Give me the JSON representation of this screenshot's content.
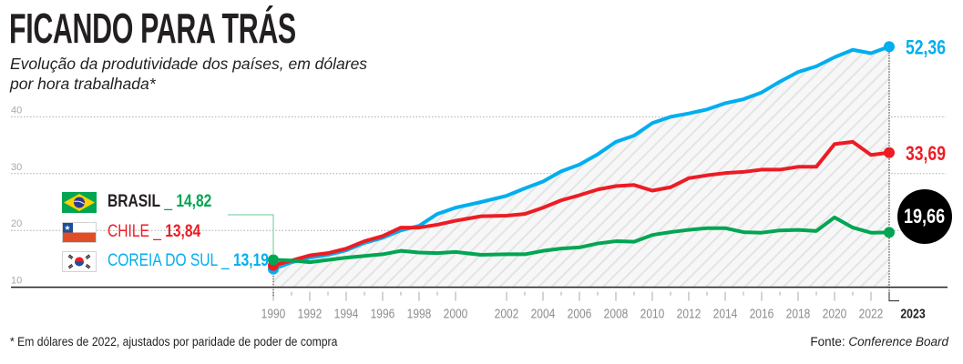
{
  "header": {
    "title": "FICANDO PARA TRÁS",
    "subtitle_line1": "Evolução da produtividade dos países, em dólares",
    "subtitle_line2": "por hora trabalhada*"
  },
  "legend": {
    "brasil": {
      "name": "BRASIL",
      "sep": "_",
      "value": "14,82",
      "flag": "brazil-flag-icon"
    },
    "chile": {
      "name": "CHILE",
      "sep": "_",
      "value": "13,84",
      "flag": "chile-flag-icon"
    },
    "coreia": {
      "name": "COREIA DO SUL",
      "sep": "_",
      "value": "13,19",
      "flag": "south-korea-flag-icon"
    }
  },
  "end_labels": {
    "coreia": "52,36",
    "chile": "33,69",
    "brasil": "19,66"
  },
  "footer": {
    "footnote": "* Em dólares de 2022, ajustados por paridade de poder de compra",
    "source_prefix": "Fonte: ",
    "source_name": "Conference Board"
  },
  "colors": {
    "brasil": "#00a651",
    "chile": "#ed1c24",
    "coreia": "#00aeef",
    "text": "#231f20",
    "grid": "#a7a9ac",
    "hatch": "#e6e7e8"
  },
  "chart_data": {
    "type": "line",
    "title": "FICANDO PARA TRÁS",
    "subtitle": "Evolução da produtividade dos países, em dólares por hora trabalhada*",
    "xlabel": "",
    "ylabel": "",
    "ylim": [
      10,
      55
    ],
    "yticks": [
      10,
      20,
      30,
      40
    ],
    "ytick_labels": [
      "10",
      "20",
      "30",
      "40"
    ],
    "grid": "horizontal dotted",
    "legend_position": "left",
    "x": [
      1990,
      1991,
      1992,
      1993,
      1994,
      1995,
      1996,
      1997,
      1998,
      1999,
      2000,
      2001,
      2002,
      2003,
      2004,
      2005,
      2006,
      2007,
      2008,
      2009,
      2010,
      2011,
      2012,
      2013,
      2014,
      2015,
      2016,
      2017,
      2018,
      2019,
      2020,
      2021,
      2022,
      2023
    ],
    "xtick_labels": [
      "1990",
      "1992",
      "1994",
      "1996",
      "1998",
      "2000",
      "2002",
      "2004",
      "2006",
      "2008",
      "2010",
      "2012",
      "2014",
      "2016",
      "2018",
      "2020",
      "2022",
      "2023"
    ],
    "series": [
      {
        "name": "Coreia do Sul",
        "key": "coreia",
        "values": [
          13.19,
          14.4,
          15.2,
          15.7,
          16.5,
          17.8,
          18.7,
          20.0,
          20.8,
          22.9,
          24.0,
          25.0,
          26.1,
          27.4,
          28.6,
          30.4,
          31.6,
          33.4,
          35.6,
          36.7,
          38.9,
          40.0,
          40.6,
          41.3,
          42.4,
          43.1,
          44.3,
          46.2,
          47.9,
          48.9,
          50.5,
          51.8,
          51.2,
          52.36
        ]
      },
      {
        "name": "Chile",
        "key": "chile",
        "values": [
          13.84,
          14.7,
          15.6,
          16.0,
          16.8,
          18.1,
          19.0,
          20.5,
          20.5,
          21.0,
          21.7,
          22.5,
          22.6,
          22.9,
          24.0,
          25.3,
          26.2,
          27.2,
          27.8,
          28.0,
          27.0,
          27.6,
          29.2,
          29.7,
          30.1,
          30.3,
          30.7,
          30.7,
          31.2,
          31.2,
          35.2,
          35.6,
          33.3,
          33.69
        ]
      },
      {
        "name": "Brasil",
        "key": "brasil",
        "values": [
          14.82,
          14.7,
          14.4,
          14.8,
          15.2,
          15.5,
          15.8,
          16.4,
          16.1,
          16.0,
          16.2,
          15.7,
          15.8,
          15.8,
          16.4,
          16.8,
          17.0,
          17.7,
          18.1,
          18.0,
          19.2,
          19.7,
          20.1,
          20.4,
          20.4,
          19.7,
          19.6,
          20.0,
          20.1,
          19.9,
          22.3,
          20.5,
          19.6,
          19.66
        ]
      }
    ],
    "start_values": {
      "Brasil": 14.82,
      "Chile": 13.84,
      "Coreia do Sul": 13.19
    },
    "end_values": {
      "Brasil": 19.66,
      "Chile": 33.69,
      "Coreia do Sul": 52.36
    },
    "source": "Conference Board",
    "note": "* Em dólares de 2022, ajustados por paridade de poder de compra"
  }
}
